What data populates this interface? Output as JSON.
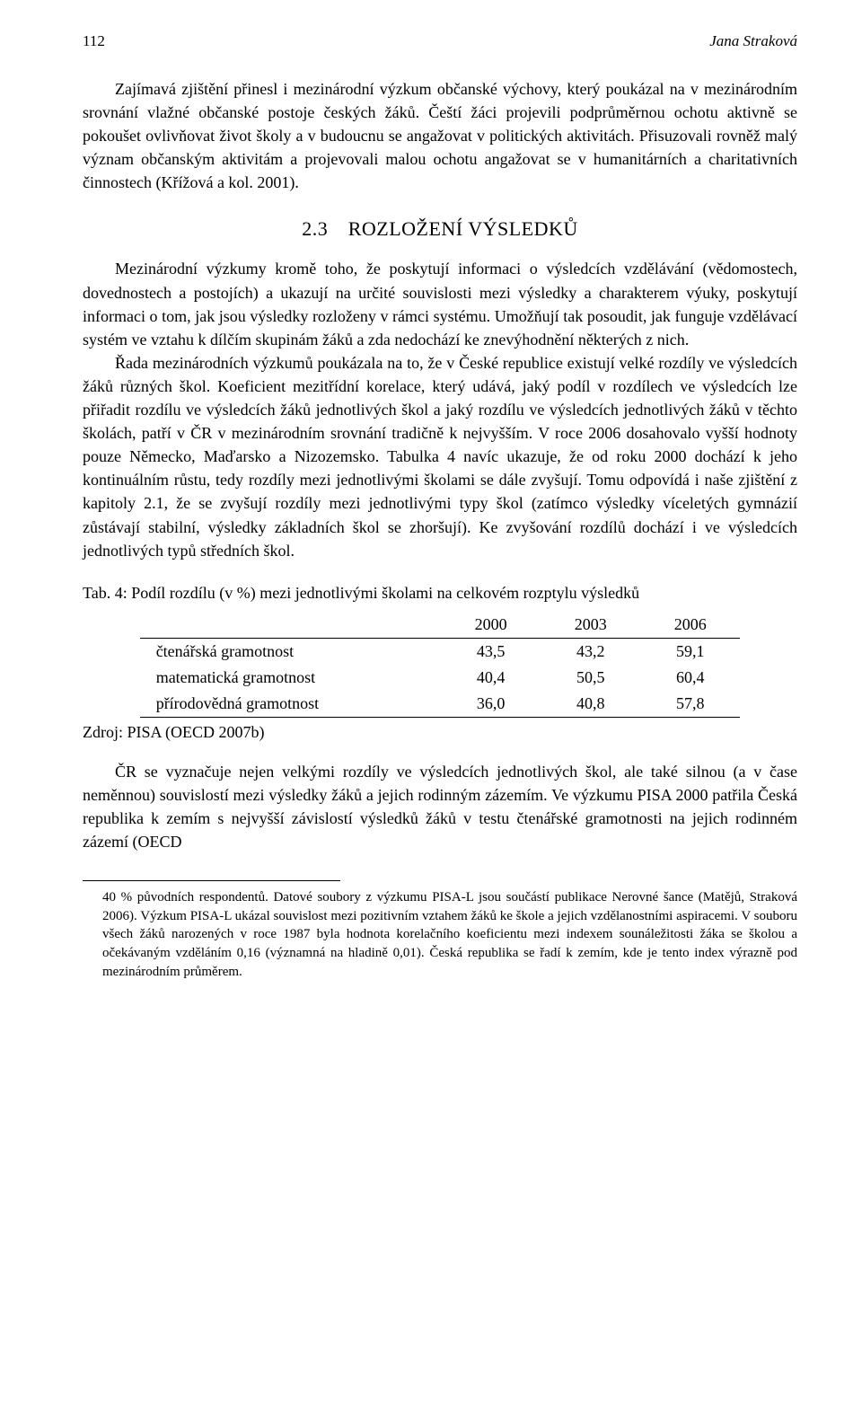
{
  "page_number": "112",
  "author": "Jana Straková",
  "paragraphs": {
    "p1": "Zajímavá zjištění přinesl i mezinárodní výzkum občanské výchovy, který poukázal na v mezinárodním srovnání vlažné občanské postoje českých žáků. Čeští žáci projevili podprůměrnou ochotu aktivně se pokoušet ovlivňovat život školy a v budoucnu se angažovat v politických aktivitách. Přisuzovali rovněž malý význam občanským aktivitám a projevovali malou ochotu angažovat se v humanitárních a charitativních činnostech (Křížová a kol. 2001).",
    "p2": "Mezinárodní výzkumy kromě toho, že poskytují informaci o výsledcích vzdělávání (vědomostech, dovednostech a postojích) a ukazují na určité souvislosti mezi výsledky a charakterem výuky, poskytují informaci o tom, jak jsou výsledky rozloženy v rámci systému. Umožňují tak posoudit, jak funguje vzdělávací systém ve vztahu k dílčím skupinám žáků a zda nedochází ke znevýhodnění některých z nich.",
    "p3": "Řada mezinárodních výzkumů poukázala na to, že v České republice existují velké rozdíly ve výsledcích žáků různých škol. Koeficient mezitřídní korelace, který udává, jaký podíl v rozdílech ve výsledcích lze přiřadit rozdílu ve výsledcích žáků jednotlivých škol a jaký rozdílu ve výsledcích jednotlivých žáků v těchto školách, patří v ČR v mezinárodním srovnání tradičně k nejvyšším. V roce 2006 dosahovalo vyšší hodnoty pouze Německo, Maďarsko a Nizozemsko. Tabulka 4 navíc ukazuje, že od roku 2000 dochází k jeho kontinuálním růstu, tedy rozdíly mezi jednotlivými školami se dále zvyšují. Tomu odpovídá i naše zjištění z kapitoly 2.1, že se zvyšují rozdíly mezi jednotlivými typy škol (zatímco výsledky víceletých gymnázií zůstávají stabilní, výsledky základních škol se zhoršují). Ke zvyšování rozdílů dochází i ve výsledcích jednotlivých typů středních škol.",
    "p4": "ČR se vyznačuje nejen velkými rozdíly ve výsledcích jednotlivých škol, ale také silnou (a v čase neměnnou) souvislostí mezi výsledky žáků a jejich rodinným zázemím. Ve výzkumu PISA 2000 patřila Česká republika k zemím s nejvyšší závislostí výsledků žáků v testu čtenářské gramotnosti na jejich rodinném zázemí (OECD"
  },
  "section_heading": "2.3 ROZLOŽENÍ VÝSLEDKŮ",
  "table": {
    "caption": "Tab. 4: Podíl rozdílu (v %) mezi jednotlivými školami na celkovém rozptylu výsledků",
    "columns": [
      "",
      "2000",
      "2003",
      "2006"
    ],
    "rows": [
      [
        "čtenářská gramotnost",
        "43,5",
        "43,2",
        "59,1"
      ],
      [
        "matematická gramotnost",
        "40,4",
        "50,5",
        "60,4"
      ],
      [
        "přírodovědná gramotnost",
        "36,0",
        "40,8",
        "57,8"
      ]
    ],
    "source": "Zdroj: PISA (OECD 2007b)"
  },
  "footnote": "40 % původních respondentů. Datové soubory z výzkumu PISA-L jsou součástí publikace Nerovné šance (Matějů, Straková 2006). Výzkum PISA-L ukázal souvislost mezi pozitivním vztahem žáků ke škole a jejich vzdělanostními aspiracemi. V souboru všech žáků narozených v roce 1987 byla hodnota korelačního koeficientu mezi indexem sounáležitosti žáka se školou a očekávaným vzděláním 0,16 (významná na hladině 0,01). Česká republika se řadí k zemím, kde je tento index výrazně pod mezinárodním průměrem."
}
